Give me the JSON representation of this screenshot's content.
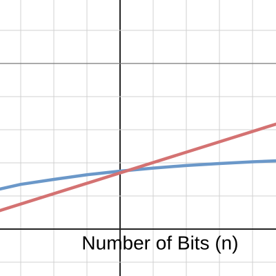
{
  "chart_data": {
    "type": "line",
    "x_label": "Number of Bits (n)",
    "xlim": [
      -3.625,
      4.708
    ],
    "ylim": [
      -1.417,
      6.917
    ],
    "xticks": [
      -3,
      -2,
      -1,
      0,
      1,
      2,
      3,
      4
    ],
    "yticks": [
      -1,
      0,
      1,
      2,
      3,
      4,
      5,
      6
    ],
    "major_every": 5,
    "grid": true,
    "series": [
      {
        "color": "#6b98c9",
        "x": [
          -3.625,
          -3,
          -2,
          -1,
          0,
          1,
          2,
          3,
          4,
          4.708
        ],
        "values": [
          1.21,
          1.35,
          1.5,
          1.64,
          1.75,
          1.84,
          1.92,
          1.98,
          2.03,
          2.06
        ]
      },
      {
        "color": "#d47272",
        "x": [
          -3.625,
          4.708
        ],
        "values": [
          0.56,
          3.17
        ]
      }
    ]
  }
}
